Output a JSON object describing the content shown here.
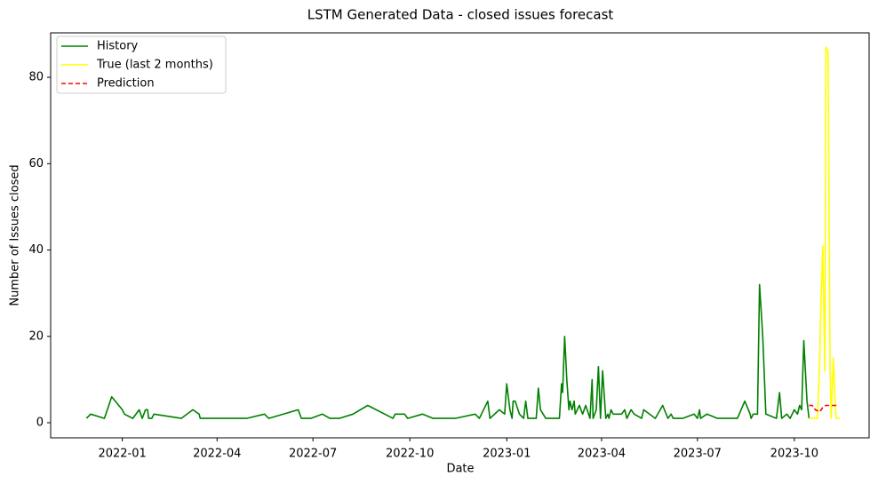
{
  "chart_data": {
    "type": "line",
    "title": "LSTM Generated Data - closed issues forecast",
    "xlabel": "Date",
    "ylabel": "Number of Issues closed",
    "xlim": [
      -68,
      709
    ],
    "ylim": [
      -3.5,
      90.3
    ],
    "xticks": [
      {
        "value": 0,
        "label": "2022-01"
      },
      {
        "value": 90,
        "label": "2022-04"
      },
      {
        "value": 181,
        "label": "2022-07"
      },
      {
        "value": 273,
        "label": "2022-10"
      },
      {
        "value": 365,
        "label": "2023-01"
      },
      {
        "value": 455,
        "label": "2023-04"
      },
      {
        "value": 546,
        "label": "2023-07"
      },
      {
        "value": 638,
        "label": "2023-10"
      }
    ],
    "yticks": [
      0,
      20,
      40,
      60,
      80
    ],
    "legend": "upper-left",
    "series": [
      {
        "name": "History",
        "color": "#008000",
        "linestyle": "solid",
        "x": [
          -34,
          -30,
          -17,
          -10,
          0,
          2,
          10,
          16,
          19,
          22,
          24,
          25,
          28,
          30,
          56,
          67,
          73,
          74,
          118,
          135,
          139,
          167,
          170,
          179,
          190,
          197,
          206,
          219,
          233,
          257,
          259,
          268,
          271,
          285,
          295,
          316,
          335,
          339,
          347,
          349,
          358,
          363,
          365,
          368,
          370,
          371,
          373,
          377,
          381,
          383,
          385,
          393,
          395,
          397,
          402,
          415,
          417,
          418,
          420,
          422,
          424,
          425,
          427,
          429,
          430,
          434,
          437,
          440,
          444,
          446,
          447,
          450,
          452,
          454,
          456,
          459,
          461,
          462,
          464,
          466,
          474,
          477,
          479,
          483,
          486,
          493,
          495,
          506,
          513,
          518,
          521,
          523,
          532,
          543,
          546,
          548,
          549,
          555,
          565,
          584,
          591,
          596,
          597,
          599,
          603,
          605,
          608,
          611,
          621,
          624,
          626,
          631,
          634,
          638,
          641,
          643,
          645,
          647,
          650,
          652
        ],
        "values": [
          1,
          2,
          1,
          6,
          3,
          2,
          1,
          3,
          1,
          3,
          3,
          1,
          1,
          2,
          1,
          3,
          2,
          1,
          1,
          2,
          1,
          3,
          1,
          1,
          2,
          1,
          1,
          2,
          4,
          1,
          2,
          2,
          1,
          2,
          1,
          1,
          2,
          1,
          5,
          1,
          3,
          2,
          9,
          3,
          1,
          5,
          5,
          2,
          1,
          5,
          1,
          1,
          8,
          3,
          1,
          1,
          9,
          7,
          20,
          10,
          3,
          5,
          3,
          5,
          2,
          4,
          2,
          4,
          1,
          10,
          1,
          3,
          13,
          1,
          12,
          1,
          2,
          1,
          3,
          2,
          2,
          3,
          1,
          3,
          2,
          1,
          3,
          1,
          4,
          1,
          2,
          1,
          1,
          2,
          1,
          3,
          1,
          2,
          1,
          1,
          5,
          2,
          1,
          2,
          2,
          32,
          20,
          2,
          1,
          7,
          1,
          2,
          1,
          3,
          2,
          4,
          3,
          19,
          5,
          1
        ]
      },
      {
        "name": "True (last 2 months)",
        "color": "#ffff00",
        "linestyle": "solid",
        "x": [
          652,
          660,
          662,
          663,
          665,
          667,
          668,
          670,
          672,
          673,
          675,
          677,
          678,
          681
        ],
        "values": [
          1,
          1,
          14,
          25,
          41,
          12,
          87,
          86,
          12,
          1,
          15,
          3,
          1,
          1
        ]
      },
      {
        "name": "Prediction",
        "color": "#ff0000",
        "linestyle": "dashed",
        "x": [
          652,
          655,
          658,
          662,
          665,
          668,
          672,
          675,
          678
        ],
        "values": [
          4,
          4,
          3,
          2.5,
          3.5,
          4,
          4,
          4,
          4
        ]
      }
    ]
  }
}
